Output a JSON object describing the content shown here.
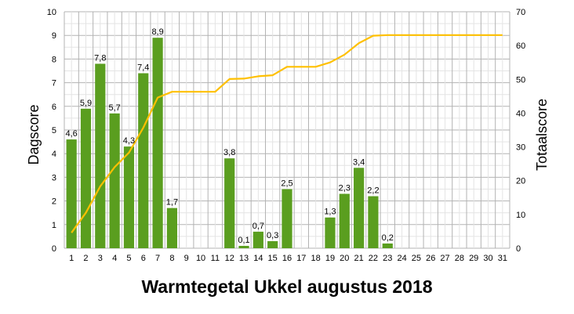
{
  "chart_data": {
    "type": "bar",
    "title": "Warmtegetal Ukkel augustus 2018",
    "ylabel": "Dagscore",
    "y2label": "Totaalscore",
    "categories": [
      "1",
      "2",
      "3",
      "4",
      "5",
      "6",
      "7",
      "8",
      "9",
      "10",
      "11",
      "12",
      "13",
      "14",
      "15",
      "16",
      "17",
      "18",
      "19",
      "20",
      "21",
      "22",
      "23",
      "24",
      "25",
      "26",
      "27",
      "28",
      "29",
      "30",
      "31"
    ],
    "ylim": [
      0,
      10
    ],
    "y2lim": [
      0,
      70
    ],
    "yticks": [
      "0",
      "1",
      "2",
      "3",
      "4",
      "5",
      "6",
      "7",
      "8",
      "9",
      "10"
    ],
    "y2ticks": [
      "0",
      "10",
      "20",
      "30",
      "40",
      "50",
      "60",
      "70"
    ],
    "grid": true,
    "series": [
      {
        "type": "bar",
        "axis": "left",
        "color": "#5a9e1f",
        "values": [
          4.6,
          5.9,
          7.8,
          5.7,
          4.3,
          7.4,
          8.9,
          1.7,
          0,
          0,
          0,
          3.8,
          0.1,
          0.7,
          0.3,
          2.5,
          0,
          0,
          1.3,
          2.3,
          3.4,
          2.2,
          0.2,
          0,
          0,
          0,
          0,
          0,
          0,
          0,
          0
        ],
        "labels": [
          "4,6",
          "5,9",
          "7,8",
          "5,7",
          "4,3",
          "7,4",
          "8,9",
          "1,7",
          "",
          "",
          "",
          "3,8",
          "0,1",
          "0,7",
          "0,3",
          "2,5",
          "",
          "",
          "1,3",
          "2,3",
          "3,4",
          "2,2",
          "0,2",
          "",
          "",
          "",
          "",
          "",
          "",
          "",
          ""
        ]
      },
      {
        "type": "line",
        "axis": "right",
        "color": "#ffc000",
        "values": [
          4.6,
          10.5,
          18.3,
          24.0,
          28.3,
          35.7,
          44.6,
          46.3,
          46.3,
          46.3,
          46.3,
          50.1,
          50.2,
          50.9,
          51.2,
          53.7,
          53.7,
          53.7,
          55.0,
          57.3,
          60.7,
          62.9,
          63.1,
          63.1,
          63.1,
          63.1,
          63.1,
          63.1,
          63.1,
          63.1,
          63.1
        ]
      }
    ]
  }
}
